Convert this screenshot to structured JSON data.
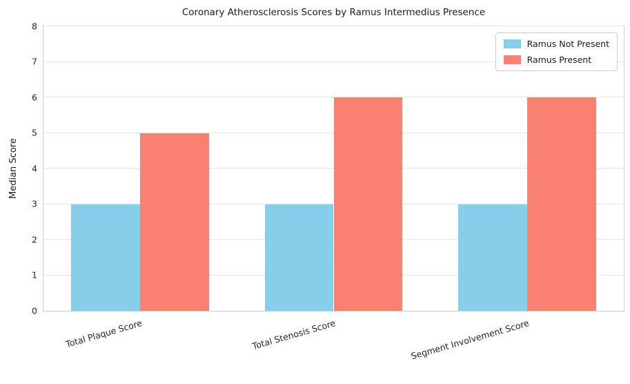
{
  "chart_data": {
    "type": "bar",
    "title": "Coronary Atherosclerosis Scores by Ramus Intermedius Presence",
    "xlabel": "",
    "ylabel": "Median Score",
    "categories": [
      "Total Plaque Score",
      "Total Stenosis Score",
      "Segment Involvement Score"
    ],
    "series": [
      {
        "name": "Ramus Not Present",
        "color": "#87CEEB",
        "values": [
          3,
          3,
          3
        ]
      },
      {
        "name": "Ramus Present",
        "color": "#FA8072",
        "values": [
          5,
          6,
          6
        ]
      }
    ],
    "ylim": [
      0,
      8
    ],
    "yticks": [
      0,
      1,
      2,
      3,
      4,
      5,
      6,
      7,
      8
    ],
    "grid": true,
    "legend_position": "upper right",
    "plot_background": "#ffffff",
    "gridline_color": "#e4e4e4",
    "spine_color": "#cccccc"
  }
}
